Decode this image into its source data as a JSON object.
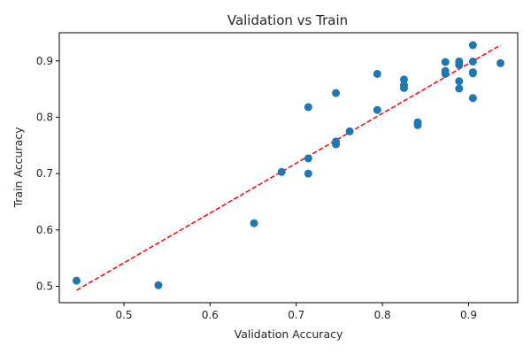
{
  "chart_data": {
    "type": "scatter",
    "title": "Validation vs Train",
    "xlabel": "Validation Accuracy",
    "ylabel": "Train Accuracy",
    "xlim": [
      0.425,
      0.957
    ],
    "ylim": [
      0.471,
      0.95
    ],
    "xticks": [
      0.5,
      0.6,
      0.7,
      0.8,
      0.9
    ],
    "yticks": [
      0.5,
      0.6,
      0.7,
      0.8,
      0.9
    ],
    "xtick_labels": [
      "0.5",
      "0.6",
      "0.7",
      "0.8",
      "0.9"
    ],
    "ytick_labels": [
      "0.5",
      "0.6",
      "0.7",
      "0.8",
      "0.9"
    ],
    "grid": false,
    "point_color": "#1f77b4",
    "series": [
      {
        "points": [
          [
            0.445,
            0.51
          ],
          [
            0.54,
            0.502
          ],
          [
            0.651,
            0.612
          ],
          [
            0.683,
            0.703
          ],
          [
            0.714,
            0.7
          ],
          [
            0.714,
            0.727
          ],
          [
            0.714,
            0.818
          ],
          [
            0.746,
            0.752
          ],
          [
            0.746,
            0.757
          ],
          [
            0.746,
            0.843
          ],
          [
            0.762,
            0.775
          ],
          [
            0.794,
            0.813
          ],
          [
            0.794,
            0.877
          ],
          [
            0.825,
            0.852
          ],
          [
            0.825,
            0.857
          ],
          [
            0.825,
            0.867
          ],
          [
            0.841,
            0.786
          ],
          [
            0.841,
            0.791
          ],
          [
            0.873,
            0.877
          ],
          [
            0.873,
            0.882
          ],
          [
            0.873,
            0.898
          ],
          [
            0.889,
            0.851
          ],
          [
            0.889,
            0.864
          ],
          [
            0.889,
            0.893
          ],
          [
            0.889,
            0.899
          ],
          [
            0.905,
            0.834
          ],
          [
            0.905,
            0.878
          ],
          [
            0.905,
            0.88
          ],
          [
            0.905,
            0.899
          ],
          [
            0.905,
            0.928
          ],
          [
            0.937,
            0.896
          ]
        ]
      }
    ],
    "trendline": {
      "style": "dashed",
      "color": "#ff0000",
      "x": [
        0.445,
        0.937
      ],
      "y": [
        0.493,
        0.928
      ]
    }
  }
}
